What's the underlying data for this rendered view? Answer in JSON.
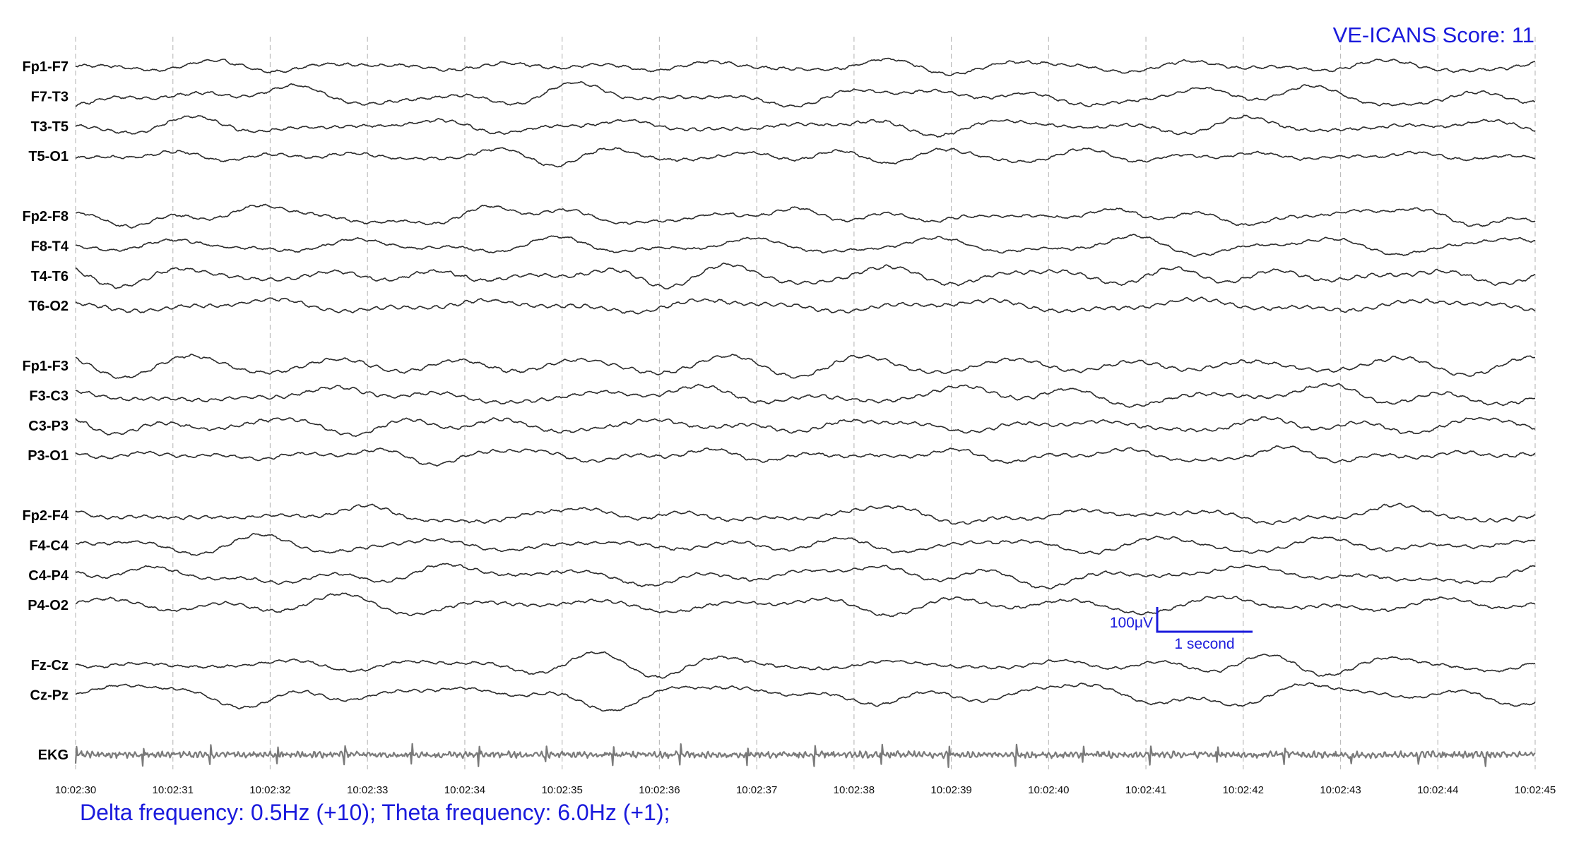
{
  "chart_data": {
    "type": "line",
    "score_label": "VE-ICANS Score: 11",
    "footer_text": "Delta frequency: 0.5Hz (+10);  Theta frequency: 6.0Hz (+1);",
    "x_ticks": [
      "10:02:30",
      "10:02:31",
      "10:02:32",
      "10:02:33",
      "10:02:34",
      "10:02:35",
      "10:02:36",
      "10:02:37",
      "10:02:38",
      "10:02:39",
      "10:02:40",
      "10:02:41",
      "10:02:42",
      "10:02:43",
      "10:02:44",
      "10:02:45"
    ],
    "xlim_seconds": [
      0,
      15
    ],
    "grid": "vertical-dashed-per-second",
    "channel_groups": [
      [
        "Fp1-F7",
        "F7-T3",
        "T3-T5",
        "T5-O1"
      ],
      [
        "Fp2-F8",
        "F8-T4",
        "T4-T6",
        "T6-O2"
      ],
      [
        "Fp1-F3",
        "F3-C3",
        "C3-P3",
        "P3-O1"
      ],
      [
        "Fp2-F4",
        "F4-C4",
        "C4-P4",
        "P4-O2"
      ],
      [
        "Fz-Cz",
        "Cz-Pz"
      ],
      [
        "EKG"
      ]
    ],
    "scale_bar": {
      "amplitude_label": "100μV",
      "time_label": "1 second"
    },
    "colors": {
      "trace": "#2a2a2a",
      "ekg": "#7a7a7a",
      "annotation": "#1a1adc",
      "grid": "#bdbdbd"
    }
  }
}
